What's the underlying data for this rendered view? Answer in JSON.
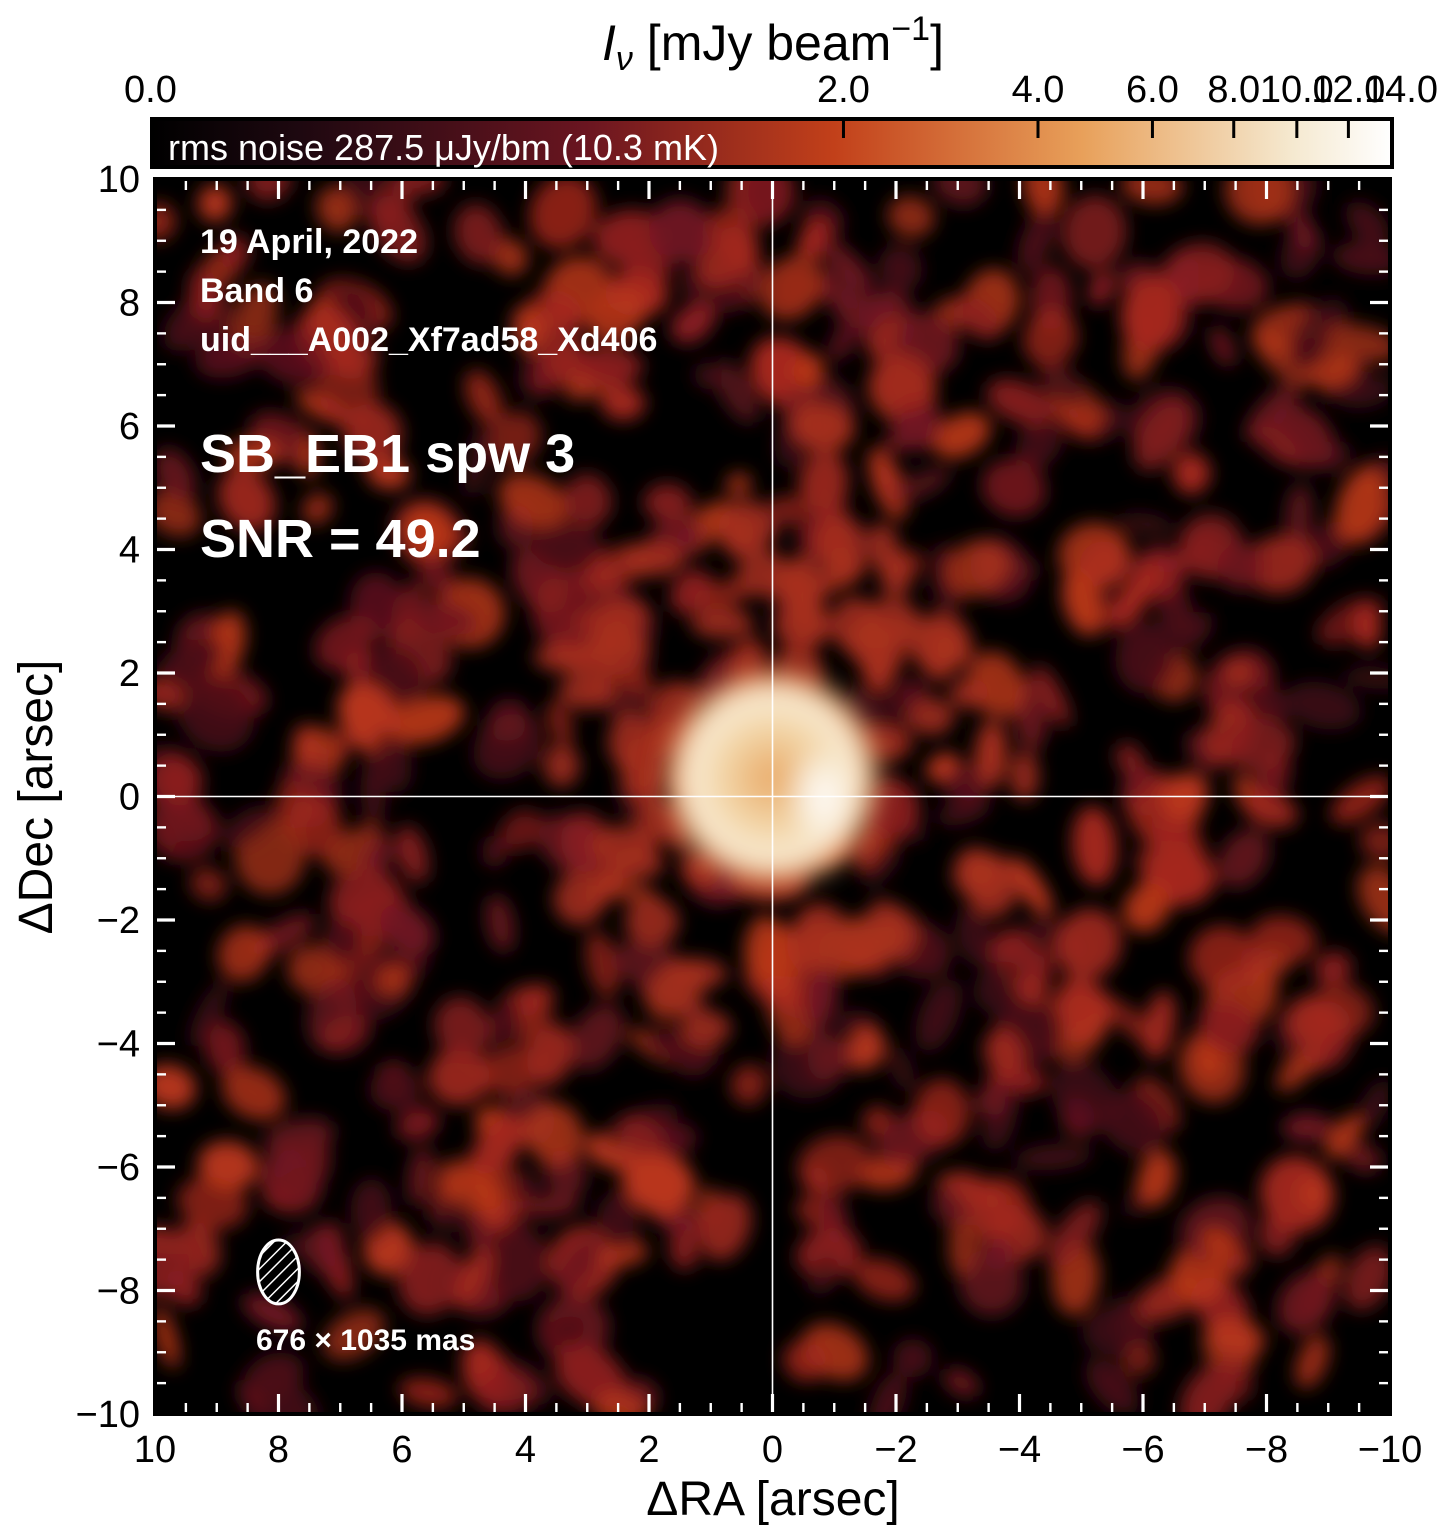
{
  "chart_data": {
    "type": "heatmap",
    "colorbar": {
      "label_main": "I",
      "label_sub": "ν",
      "label_rest": " [mJy beam",
      "label_sup": "−1",
      "label_close": "]",
      "ticks": [
        0.0,
        2.0,
        4.0,
        6.0,
        8.0,
        10.0,
        12.0,
        14.0
      ],
      "tick_labels": [
        "0.0",
        "2.0",
        "4.0",
        "6.0",
        "8.0",
        "10.0",
        "12.0",
        "14.0"
      ],
      "range": [
        0.0,
        14.0
      ],
      "scale": "asinh-stretch",
      "colormap": [
        "#000000",
        "#2a0a10",
        "#6a1520",
        "#b0301a",
        "#d86a2a",
        "#e9b070",
        "#f4e6c8",
        "#ffffff"
      ],
      "noise_text": "rms noise 287.5 μJy/bm (10.3 mK)"
    },
    "xlabel": "ΔRA [arsec]",
    "ylabel": "ΔDec [arsec]",
    "xlim": [
      10,
      -10
    ],
    "ylim": [
      -10,
      10
    ],
    "x_ticks": [
      10,
      8,
      6,
      4,
      2,
      0,
      -2,
      -4,
      -6,
      -8,
      -10
    ],
    "x_tick_labels": [
      "10",
      "8",
      "6",
      "4",
      "2",
      "0",
      "−2",
      "−4",
      "−6",
      "−8",
      "−10"
    ],
    "y_ticks": [
      10,
      8,
      6,
      4,
      2,
      0,
      -2,
      -4,
      -6,
      -8,
      -10
    ],
    "y_tick_labels": [
      "10",
      "8",
      "6",
      "4",
      "2",
      "0",
      "−2",
      "−4",
      "−6",
      "−8",
      "−10"
    ],
    "crosshair": [
      0,
      0
    ],
    "annotations": {
      "date": "19 April, 2022",
      "band": "Band 6",
      "uid": "uid___A002_Xf7ad58_Xd406",
      "spw": "SB_EB1 spw 3",
      "snr": "SNR = 49.2"
    },
    "beam": {
      "center_arcsec": [
        8.0,
        -7.7
      ],
      "major_mas": 1035,
      "minor_mas": 676,
      "label": "676 × 1035 mas"
    },
    "source": {
      "type": "ring",
      "center_arcsec": [
        0.0,
        0.3
      ],
      "radius_arcsec": 1.2,
      "peak_mjy": 14.1,
      "peak_offset_arcsec": [
        -0.8,
        0.0
      ]
    }
  }
}
